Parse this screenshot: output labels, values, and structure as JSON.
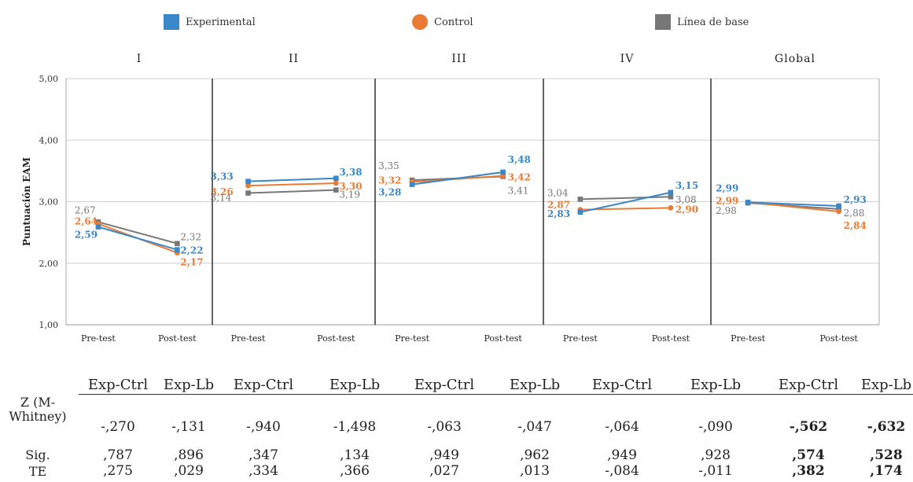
{
  "legend": {
    "experimental": "Experimental",
    "control": "Control",
    "baseline": "Línea de base"
  },
  "colors": {
    "experimental": "#3a87c9",
    "control": "#ea7b35",
    "baseline": "#777777"
  },
  "chart_data": {
    "type": "line",
    "ylabel": "Puntuación EAM",
    "ylim": [
      1,
      5
    ],
    "yticks": [
      "1,00",
      "2,00",
      "3,00",
      "4,00",
      "5,00"
    ],
    "grid": true,
    "legend_position": "top",
    "panels": [
      {
        "title": "I",
        "categories": [
          "Pre-test",
          "Post-test"
        ],
        "series": [
          {
            "name": "Experimental",
            "values": [
              2.59,
              2.22
            ],
            "labels": [
              "2,59",
              "2,22"
            ]
          },
          {
            "name": "Control",
            "values": [
              2.64,
              2.17
            ],
            "labels": [
              "2,64",
              "2,17"
            ]
          },
          {
            "name": "Línea de base",
            "values": [
              2.67,
              2.32
            ],
            "labels": [
              "2,67",
              "2,32"
            ]
          }
        ]
      },
      {
        "title": "II",
        "categories": [
          "Pre-test",
          "Post-test"
        ],
        "series": [
          {
            "name": "Experimental",
            "values": [
              3.33,
              3.38
            ],
            "labels": [
              "3,33",
              "3,38"
            ]
          },
          {
            "name": "Control",
            "values": [
              3.26,
              3.3
            ],
            "labels": [
              "3,26",
              "3,30"
            ]
          },
          {
            "name": "Línea de base",
            "values": [
              3.14,
              3.19
            ],
            "labels": [
              "3,14",
              "3,19"
            ]
          }
        ]
      },
      {
        "title": "III",
        "categories": [
          "Pre-test",
          "Post-test"
        ],
        "series": [
          {
            "name": "Experimental",
            "values": [
              3.28,
              3.48
            ],
            "labels": [
              "3,28",
              "3,48"
            ]
          },
          {
            "name": "Control",
            "values": [
              3.32,
              3.42
            ],
            "labels": [
              "3,32",
              "3,42"
            ]
          },
          {
            "name": "Línea de base",
            "values": [
              3.35,
              3.41
            ],
            "labels": [
              "3,35",
              "3,41"
            ]
          }
        ]
      },
      {
        "title": "IV",
        "categories": [
          "Pre-test",
          "Post-test"
        ],
        "series": [
          {
            "name": "Experimental",
            "values": [
              2.83,
              3.15
            ],
            "labels": [
              "2,83",
              "3,15"
            ]
          },
          {
            "name": "Control",
            "values": [
              2.87,
              2.9
            ],
            "labels": [
              "2,87",
              "2,90"
            ]
          },
          {
            "name": "Línea de base",
            "values": [
              3.04,
              3.08
            ],
            "labels": [
              "3,04",
              "3,08"
            ]
          }
        ]
      },
      {
        "title": "Global",
        "categories": [
          "Pre-test",
          "Post-test"
        ],
        "series": [
          {
            "name": "Experimental",
            "values": [
              2.99,
              2.93
            ],
            "labels": [
              "2,99",
              "2,93"
            ]
          },
          {
            "name": "Control",
            "values": [
              2.99,
              2.84
            ],
            "labels": [
              "2,99",
              "2,84"
            ]
          },
          {
            "name": "Línea de base",
            "values": [
              2.98,
              2.88
            ],
            "labels": [
              "2,98",
              "2,88"
            ]
          }
        ]
      }
    ]
  },
  "stats_table": {
    "columns": [
      "Exp-Ctrl",
      "Exp-Lb",
      "Exp-Ctrl",
      "Exp-Lb",
      "Exp-Ctrl",
      "Exp-Lb",
      "Exp-Ctrl",
      "Exp-Lb",
      "Exp-Ctrl",
      "Exp-Lb"
    ],
    "rows": [
      {
        "label": "Z (M-Whitney)",
        "values": [
          "-,270",
          "-,131",
          "-,940",
          "-1,498",
          "-,063",
          "-,047",
          "-,064",
          "-,090",
          "-,562",
          "-,632"
        ]
      },
      {
        "label": "Sig.",
        "values": [
          ",787",
          ",896",
          ",347",
          ",134",
          ",949",
          ",962",
          ",949",
          ",928",
          ",574",
          ",528"
        ]
      },
      {
        "label": "TE",
        "values": [
          ",275",
          ",029",
          ",334",
          ",366",
          ",027",
          ",013",
          "-,084",
          "-,011",
          ",382",
          ",174"
        ]
      }
    ]
  }
}
